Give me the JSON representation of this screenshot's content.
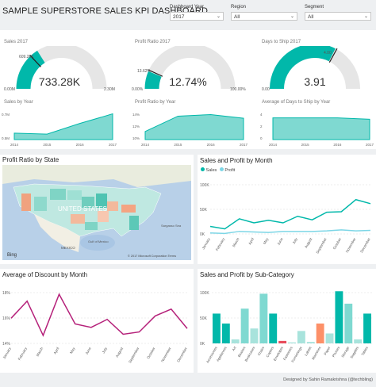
{
  "header": {
    "title": "SAMPLE SUPERSTORE SALES KPI DASHBOARD"
  },
  "filters": [
    {
      "label": "Dashboard Year",
      "value": "2017"
    },
    {
      "label": "Region",
      "value": "All"
    },
    {
      "label": "Segment",
      "value": "All"
    }
  ],
  "gauges": [
    {
      "title": "Sales 2017",
      "value": "733.28K",
      "min": "0.00M",
      "max": "2.30M",
      "marker": "609.26K",
      "fill_fraction": 0.32,
      "marker_fraction": 0.26
    },
    {
      "title": "Profit Ratio 2017",
      "value": "12.74%",
      "min": "0.00%",
      "max": "100.00%",
      "marker": "13.62%",
      "fill_fraction": 0.1274,
      "marker_fraction": 0.136
    },
    {
      "title": "Days to Ship 2017",
      "value": "3.91",
      "min": "0.00",
      "max": "",
      "marker": "4.00",
      "fill_fraction": 0.65,
      "marker_fraction": 0.66
    }
  ],
  "colors": {
    "teal": "#01b8aa",
    "teal_light": "#a8e3dc",
    "teal_fill": "#7fd9d1",
    "gray_track": "#e6e6e6",
    "bar_orange": "#fd9068",
    "line_light": "#7dd6e6"
  },
  "trend_cards": [
    {
      "title": "Sales by Year",
      "x_labels": [
        "2014",
        "2015",
        "2016",
        "2017"
      ],
      "y_labels": [
        "0.7M",
        "0.5M"
      ],
      "chart_data": {
        "type": "area",
        "x": [
          "2014",
          "2015",
          "2016",
          "2017"
        ],
        "values": [
          0.484,
          0.471,
          0.609,
          0.733
        ]
      }
    },
    {
      "title": "Profit Ratio by Year",
      "x_labels": [
        "2014",
        "2015",
        "2016",
        "2017"
      ],
      "y_labels": [
        "14%",
        "12%",
        "10%"
      ],
      "chart_data": {
        "type": "area",
        "x": [
          "2014",
          "2015",
          "2016",
          "2017"
        ],
        "values": [
          10.2,
          13.1,
          13.4,
          12.7
        ]
      }
    },
    {
      "title": "Average of Days to Ship by Year",
      "x_labels": [
        "2014",
        "2015",
        "2016",
        "2017"
      ],
      "y_labels": [
        "4",
        "2",
        "0"
      ],
      "chart_data": {
        "type": "area",
        "x": [
          "2014",
          "2015",
          "2016",
          "2017"
        ],
        "values": [
          3.95,
          3.95,
          3.95,
          3.91
        ]
      }
    }
  ],
  "map": {
    "title": "Profit Ratio by State",
    "country_label": "UNITED STATES",
    "mexico_label": "MEXICO",
    "gulf_label": "Gulf of Mexico",
    "sargasso_label": "Sargasso Sea",
    "bing_label": "Bing",
    "copyright": "© 2017 Microsoft Corporation  Terms"
  },
  "sales_profit_month": {
    "title": "Sales and Profit by Month",
    "legend": [
      {
        "name": "Sales",
        "color": "#01b8aa"
      },
      {
        "name": "Profit",
        "color": "#7dd6e6"
      }
    ],
    "y_labels": [
      "100K",
      "50K",
      "0K"
    ],
    "chart_data": {
      "type": "line",
      "categories": [
        "January",
        "February",
        "March",
        "April",
        "May",
        "June",
        "July",
        "August",
        "September",
        "October",
        "November",
        "December"
      ],
      "series": [
        {
          "name": "Sales",
          "values": [
            15,
            10,
            30,
            22,
            27,
            22,
            35,
            28,
            43,
            44,
            68,
            60
          ]
        },
        {
          "name": "Profit",
          "values": [
            2,
            1,
            5,
            4,
            3,
            5,
            5,
            5,
            6,
            8,
            6,
            7
          ]
        }
      ],
      "ylim": [
        0,
        110
      ]
    }
  },
  "discount_month": {
    "title": "Average of Discount by Month",
    "y_labels": [
      "18%",
      "16%",
      "14%"
    ],
    "chart_data": {
      "type": "line",
      "categories": [
        "January",
        "February",
        "March",
        "April",
        "May",
        "June",
        "July",
        "August",
        "September",
        "October",
        "November",
        "December"
      ],
      "series": [
        {
          "name": "",
          "values": [
            15.7,
            17.2,
            14.2,
            17.8,
            15.2,
            14.9,
            15.6,
            14.3,
            14.5,
            15.9,
            16.5,
            14.8
          ]
        }
      ],
      "ylim": [
        13.5,
        18.5
      ]
    }
  },
  "subcategory": {
    "title": "Sales and Profit by Sub-Category",
    "y_labels": [
      "100K",
      "50K",
      "0K"
    ],
    "chart_data": {
      "type": "bar",
      "categories": [
        "Accessories",
        "Appliances",
        "Art",
        "Binders",
        "Bookcases",
        "Chairs",
        "Copiers",
        "Envelopes",
        "Fasteners",
        "Furnishings",
        "Labels",
        "Machines",
        "Paper",
        "Phones",
        "Storage",
        "Supplies",
        "Tables"
      ],
      "series": [
        {
          "name": "Sales",
          "values": [
            60,
            40,
            8,
            70,
            30,
            100,
            60,
            5,
            2,
            25,
            3,
            40,
            20,
            105,
            80,
            8,
            60
          ]
        }
      ],
      "ylim": [
        0,
        115
      ]
    }
  },
  "footer": {
    "credit": "Designed by Sahin Ramakrishna (@techbling)"
  }
}
